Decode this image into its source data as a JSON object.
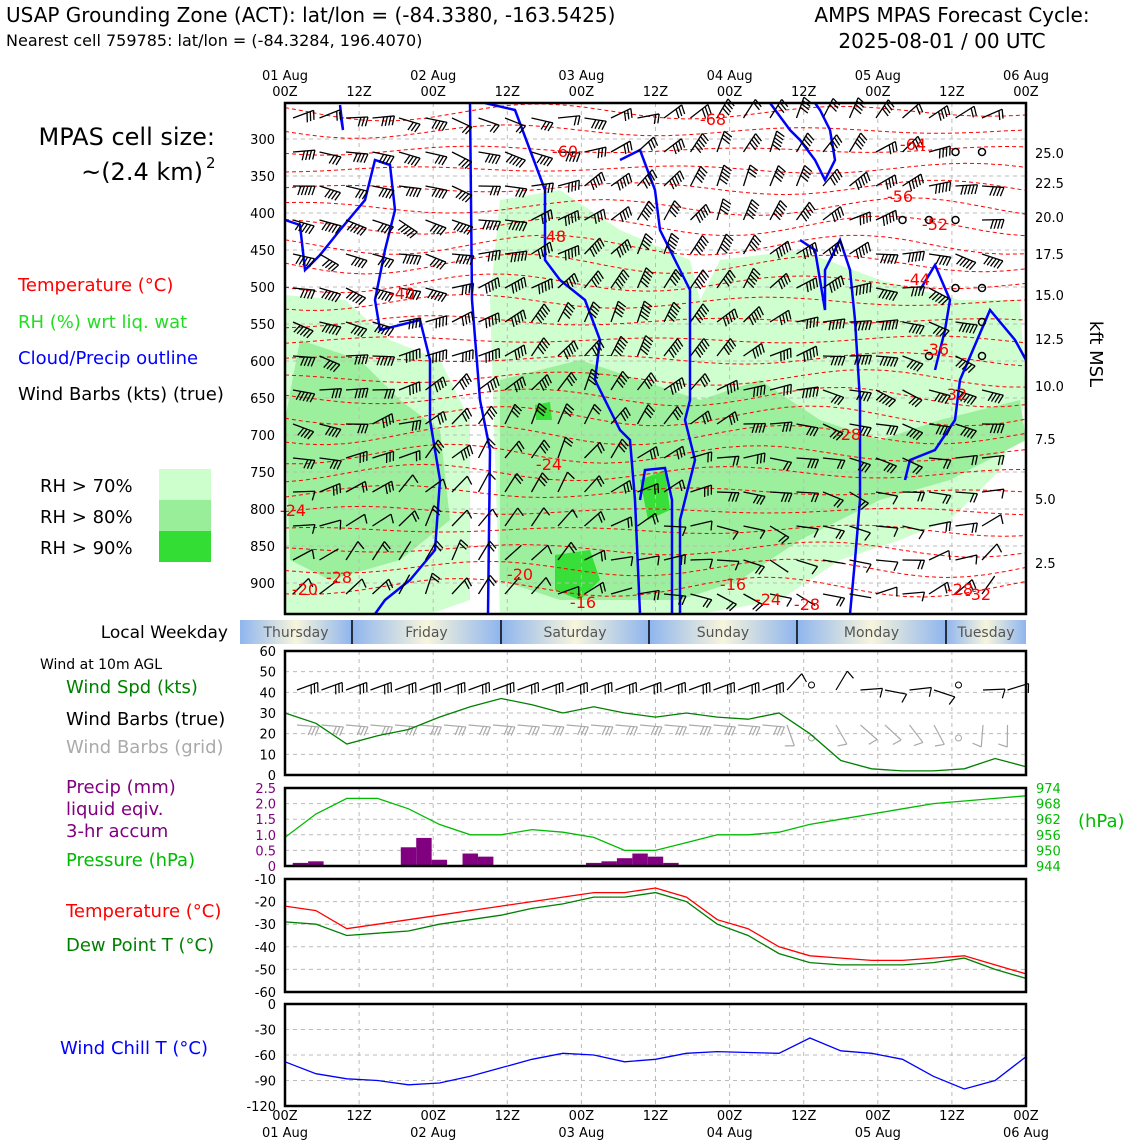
{
  "header": {
    "title_left": "USAP Grounding Zone (ACT): lat/lon = (-84.3380, -163.5425)",
    "subtitle_left": "Nearest cell 759785: lat/lon = (-84.3284, 196.4070)",
    "title_right_1": "AMPS MPAS Forecast Cycle:",
    "title_right_2": "2025-08-01 / 00 UTC"
  },
  "legend": {
    "cell_size_1": "MPAS cell size:",
    "cell_size_2": "~(2.4 km)",
    "cell_size_sup": "2",
    "temperature": "Temperature (°C)",
    "rh": "RH (%) wrt liq. wat",
    "cloud": "Cloud/Precip outline",
    "barbs": "Wind Barbs (kts) (true)",
    "rh70": "RH > 70%",
    "rh80": "RH > 80%",
    "rh90": "RH > 90%"
  },
  "colors": {
    "temperature": "#ff0000",
    "rh_label": "#22dd22",
    "cloud": "#0000ff",
    "rh70": "#ccffcc",
    "rh80": "#99ee99",
    "rh90": "#33dd33",
    "precip": "#800080",
    "pressure": "#00bb00",
    "dewpoint": "#008000",
    "windchill": "#0000ff",
    "wind_grid": "#aaaaaa"
  },
  "time_axis": {
    "top_dates": [
      "01 Aug",
      "",
      "02 Aug",
      "",
      "03 Aug",
      "",
      "04 Aug",
      "",
      "05 Aug",
      "",
      "06 Aug"
    ],
    "top_hours": [
      "00Z",
      "12Z",
      "00Z",
      "12Z",
      "00Z",
      "12Z",
      "00Z",
      "12Z",
      "00Z",
      "12Z",
      "00Z"
    ],
    "bottom_hours": [
      "00Z",
      "12Z",
      "00Z",
      "12Z",
      "00Z",
      "12Z",
      "00Z",
      "12Z",
      "00Z",
      "12Z",
      "00Z"
    ],
    "bottom_dates": [
      "01 Aug",
      "",
      "02 Aug",
      "",
      "03 Aug",
      "",
      "04 Aug",
      "",
      "05 Aug",
      "",
      "06 Aug"
    ]
  },
  "weekday_bar": {
    "label": "Local Weekday",
    "days": [
      "Thursday",
      "Friday",
      "Saturday",
      "Sunday",
      "Monday",
      "Tuesday"
    ]
  },
  "sounding": {
    "pressure_ticks": [
      300,
      350,
      400,
      450,
      500,
      550,
      600,
      650,
      700,
      750,
      800,
      850,
      900
    ],
    "kft_ticks": [
      25.0,
      22.5,
      20.0,
      17.5,
      15.0,
      12.5,
      10.0,
      7.5,
      5.0,
      2.5
    ],
    "kft_label": "kft MSL",
    "temp_labels": [
      "-68",
      "-64",
      "-60",
      "-56",
      "-52",
      "-48",
      "-44",
      "-40",
      "-36",
      "-32",
      "-28",
      "-24",
      "-24",
      "-28",
      "-20",
      "-20",
      "-16",
      "-16",
      "-24",
      "-28",
      "-28",
      "-32"
    ]
  },
  "wind10m": {
    "title": "Wind at 10m AGL",
    "spd_label": "Wind Spd (kts)",
    "barb_true_label": "Wind Barbs (true)",
    "barb_grid_label": "Wind Barbs (grid)",
    "yticks": [
      0,
      10,
      20,
      30,
      40,
      50,
      60
    ]
  },
  "precip": {
    "label_1": "Precip (mm)",
    "label_2": "liquid eqiv.",
    "label_3": "3-hr accum",
    "pressure_label": "Pressure (hPa)",
    "left_ticks": [
      "0",
      "0.5",
      "1.0",
      "1.5",
      "2.0",
      "2.5"
    ],
    "right_ticks": [
      "944",
      "950",
      "956",
      "962",
      "968",
      "974"
    ],
    "right_unit": "(hPa)"
  },
  "temps": {
    "temp_label": "Temperature (°C)",
    "dew_label": "Dew Point T (°C)",
    "yticks": [
      "-10",
      "-20",
      "-30",
      "-40",
      "-50",
      "-60"
    ]
  },
  "windchill": {
    "label": "Wind Chill T (°C)",
    "yticks": [
      "0",
      "-30",
      "-60",
      "-90",
      "-120"
    ]
  },
  "chart_data": [
    {
      "type": "line",
      "title": "Wind at 10m AGL",
      "x_hours": [
        0,
        6,
        12,
        18,
        24,
        30,
        36,
        42,
        48,
        54,
        60,
        66,
        72,
        78,
        84,
        90,
        96,
        102,
        108,
        114,
        120,
        126,
        132,
        138,
        144
      ],
      "series": [
        {
          "name": "Wind Spd (kts)",
          "values": [
            30,
            25,
            15,
            19,
            22,
            28,
            33,
            37,
            34,
            30,
            33,
            30,
            28,
            30,
            28,
            27,
            30,
            20,
            7,
            3,
            2,
            2,
            3,
            8,
            4
          ]
        }
      ],
      "ylim": [
        0,
        60
      ]
    },
    {
      "type": "bar",
      "title": "Precip (mm) liquid eqiv. 3-hr accum",
      "x_hours": [
        3,
        6,
        24,
        27,
        30,
        36,
        39,
        60,
        63,
        66,
        69,
        72,
        75
      ],
      "values": [
        0.1,
        0.15,
        0.6,
        0.9,
        0.2,
        0.4,
        0.3,
        0.1,
        0.15,
        0.25,
        0.4,
        0.3,
        0.1
      ],
      "ylim": [
        0,
        2.5
      ]
    },
    {
      "type": "line",
      "title": "Pressure (hPa)",
      "x_hours": [
        0,
        6,
        12,
        18,
        24,
        30,
        36,
        42,
        48,
        54,
        60,
        66,
        72,
        78,
        84,
        90,
        96,
        102,
        108,
        114,
        120,
        126,
        132,
        138,
        144
      ],
      "series": [
        {
          "name": "Pressure (hPa)",
          "values": [
            955,
            964,
            970,
            970,
            966,
            960,
            956,
            956,
            958,
            957,
            955,
            950,
            950,
            953,
            956,
            956,
            957,
            960,
            962,
            964,
            966,
            968,
            969,
            970,
            971
          ]
        }
      ],
      "ylim": [
        944,
        974
      ]
    },
    {
      "type": "line",
      "title": "Temperature / Dew Point",
      "x_hours": [
        0,
        6,
        12,
        18,
        24,
        30,
        36,
        42,
        48,
        54,
        60,
        66,
        72,
        78,
        84,
        90,
        96,
        102,
        108,
        114,
        120,
        126,
        132,
        138,
        144
      ],
      "series": [
        {
          "name": "Temperature (°C)",
          "values": [
            -22,
            -24,
            -32,
            -30,
            -28,
            -26,
            -24,
            -22,
            -20,
            -18,
            -16,
            -16,
            -14,
            -18,
            -28,
            -32,
            -40,
            -44,
            -45,
            -46,
            -46,
            -45,
            -44,
            -48,
            -52
          ]
        },
        {
          "name": "Dew Point T (°C)",
          "values": [
            -29,
            -30,
            -35,
            -34,
            -33,
            -30,
            -28,
            -26,
            -23,
            -21,
            -18,
            -18,
            -16,
            -20,
            -30,
            -35,
            -43,
            -47,
            -48,
            -48,
            -48,
            -47,
            -45,
            -50,
            -54
          ]
        }
      ],
      "ylim": [
        -60,
        -10
      ]
    },
    {
      "type": "line",
      "title": "Wind Chill T (°C)",
      "x_hours": [
        0,
        6,
        12,
        18,
        24,
        30,
        36,
        42,
        48,
        54,
        60,
        66,
        72,
        78,
        84,
        90,
        96,
        102,
        108,
        114,
        120,
        126,
        132,
        138,
        144
      ],
      "series": [
        {
          "name": "Wind Chill T (°C)",
          "values": [
            -68,
            -82,
            -88,
            -90,
            -95,
            -93,
            -85,
            -75,
            -65,
            -58,
            -60,
            -68,
            -65,
            -58,
            -56,
            -57,
            -58,
            -40,
            -55,
            -58,
            -65,
            -85,
            -100,
            -90,
            -62
          ]
        }
      ],
      "ylim": [
        -120,
        0
      ]
    }
  ]
}
